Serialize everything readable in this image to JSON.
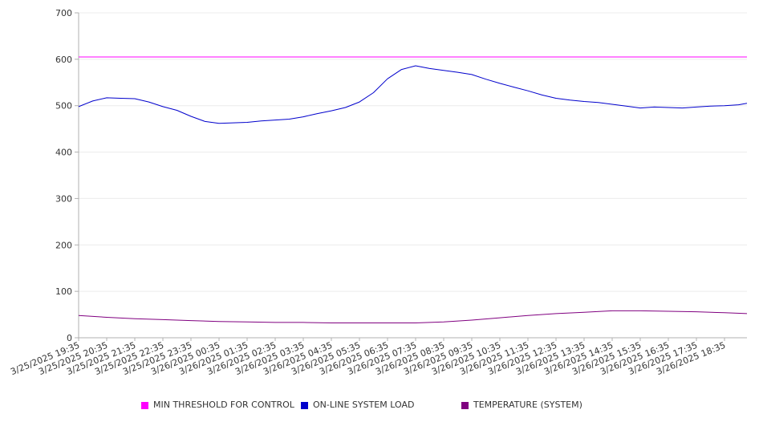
{
  "chart_data": {
    "type": "line",
    "title": "",
    "xlabel": "",
    "ylabel": "",
    "ylim": [
      0,
      700
    ],
    "y_ticks": [
      0,
      100,
      200,
      300,
      400,
      500,
      600,
      700
    ],
    "grid": true,
    "legend_position": "bottom",
    "x_tick_labels": [
      "3/25/2025 19:35",
      "3/25/2025 20:35",
      "3/25/2025 21:35",
      "3/25/2025 22:35",
      "3/25/2025 23:35",
      "3/26/2025 00:35",
      "3/26/2025 01:35",
      "3/26/2025 02:35",
      "3/26/2025 03:35",
      "3/26/2025 04:35",
      "3/26/2025 05:35",
      "3/26/2025 06:35",
      "3/26/2025 07:35",
      "3/26/2025 08:35",
      "3/26/2025 09:35",
      "3/26/2025 10:35",
      "3/26/2025 11:35",
      "3/26/2025 12:35",
      "3/26/2025 13:35",
      "3/26/2025 14:35",
      "3/26/2025 15:35",
      "3/26/2025 16:35",
      "3/26/2025 17:35",
      "3/26/2025 18:35"
    ],
    "series": [
      {
        "name": "MIN THRESHOLD FOR CONTROL",
        "color": "#ff00ff",
        "x": [
          "3/25/2025 19:35",
          "3/26/2025 19:30"
        ],
        "values": [
          605,
          605
        ]
      },
      {
        "name": "ON-LINE SYSTEM LOAD",
        "color": "#0000cc",
        "x": [
          "3/25/2025 19:35",
          "3/25/2025 20:05",
          "3/25/2025 20:35",
          "3/25/2025 21:05",
          "3/25/2025 21:35",
          "3/25/2025 22:05",
          "3/25/2025 22:35",
          "3/25/2025 23:05",
          "3/25/2025 23:35",
          "3/26/2025 00:05",
          "3/26/2025 00:35",
          "3/26/2025 01:05",
          "3/26/2025 01:35",
          "3/26/2025 02:05",
          "3/26/2025 02:35",
          "3/26/2025 03:05",
          "3/26/2025 03:35",
          "3/26/2025 04:05",
          "3/26/2025 04:35",
          "3/26/2025 05:05",
          "3/26/2025 05:35",
          "3/26/2025 06:05",
          "3/26/2025 06:35",
          "3/26/2025 07:05",
          "3/26/2025 07:35",
          "3/26/2025 08:05",
          "3/26/2025 08:35",
          "3/26/2025 09:05",
          "3/26/2025 09:35",
          "3/26/2025 10:05",
          "3/26/2025 10:35",
          "3/26/2025 11:05",
          "3/26/2025 11:35",
          "3/26/2025 12:05",
          "3/26/2025 12:35",
          "3/26/2025 13:05",
          "3/26/2025 13:35",
          "3/26/2025 14:05",
          "3/26/2025 14:35",
          "3/26/2025 15:05",
          "3/26/2025 15:35",
          "3/26/2025 16:05",
          "3/26/2025 16:35",
          "3/26/2025 17:05",
          "3/26/2025 17:35",
          "3/26/2025 18:05",
          "3/26/2025 18:35",
          "3/26/2025 19:05",
          "3/26/2025 19:30"
        ],
        "values": [
          498,
          510,
          517,
          516,
          515,
          508,
          498,
          490,
          477,
          466,
          462,
          463,
          464,
          467,
          469,
          471,
          476,
          483,
          489,
          496,
          508,
          528,
          558,
          578,
          586,
          580,
          576,
          572,
          567,
          557,
          548,
          540,
          532,
          523,
          516,
          512,
          509,
          507,
          503,
          499,
          495,
          497,
          496,
          495,
          497,
          499,
          500,
          502,
          505
        ]
      },
      {
        "name": "TEMPERATURE (SYSTEM)",
        "color": "#800080",
        "x": [
          "3/25/2025 19:35",
          "3/25/2025 20:35",
          "3/25/2025 21:35",
          "3/25/2025 22:35",
          "3/25/2025 23:35",
          "3/26/2025 00:35",
          "3/26/2025 01:35",
          "3/26/2025 02:35",
          "3/26/2025 03:35",
          "3/26/2025 04:35",
          "3/26/2025 05:35",
          "3/26/2025 06:35",
          "3/26/2025 07:35",
          "3/26/2025 08:35",
          "3/26/2025 09:35",
          "3/26/2025 10:35",
          "3/26/2025 11:35",
          "3/26/2025 12:35",
          "3/26/2025 13:35",
          "3/26/2025 14:35",
          "3/26/2025 15:35",
          "3/26/2025 16:35",
          "3/26/2025 17:35",
          "3/26/2025 18:35",
          "3/26/2025 19:30"
        ],
        "values": [
          48,
          44,
          41,
          39,
          37,
          35,
          34,
          33,
          33,
          32,
          32,
          32,
          32,
          34,
          38,
          43,
          48,
          52,
          55,
          58,
          58,
          57,
          56,
          54,
          52
        ]
      }
    ]
  }
}
